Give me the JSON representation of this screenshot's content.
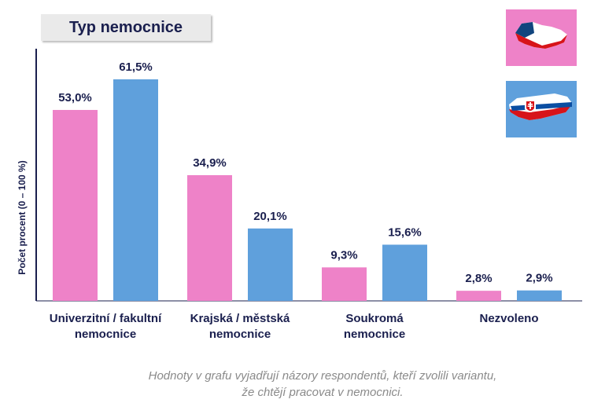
{
  "title": "Typ nemocnice",
  "legend": [
    {
      "label": "",
      "color": "#ee82c8",
      "icon": "czech-map-flag-icon"
    },
    {
      "label": "",
      "color": "#5fa0dc",
      "icon": "slovak-map-flag-icon"
    }
  ],
  "footnote": {
    "line1": "Hodnoty v grafu vyjadřují názory respondentů, kteří zvolili variantu,",
    "line2": "že chtějí pracovat v nemocnici."
  },
  "chart_data": {
    "type": "bar",
    "title": "Typ nemocnice",
    "ylabel": "Počet procent  (0 – 100 %)",
    "xlabel": "",
    "ylim": [
      0,
      70
    ],
    "grid": false,
    "categories": [
      [
        "Univerzitní / fakultní",
        "nemocnice"
      ],
      [
        "Krajská / městská",
        "nemocnice"
      ],
      [
        "Soukromá",
        "nemocnice"
      ],
      [
        "Nezvoleno"
      ]
    ],
    "series": [
      {
        "color": "#ee82c8",
        "values": [
          53.0,
          34.9,
          9.3,
          2.8
        ],
        "labels": [
          "53,0%",
          "34,9%",
          "9,3%",
          "2,8%"
        ]
      },
      {
        "color": "#5fa0dc",
        "values": [
          61.5,
          20.1,
          15.6,
          2.9
        ],
        "labels": [
          "61,5%",
          "20,1%",
          "15,6%",
          "2,9%"
        ]
      }
    ]
  }
}
